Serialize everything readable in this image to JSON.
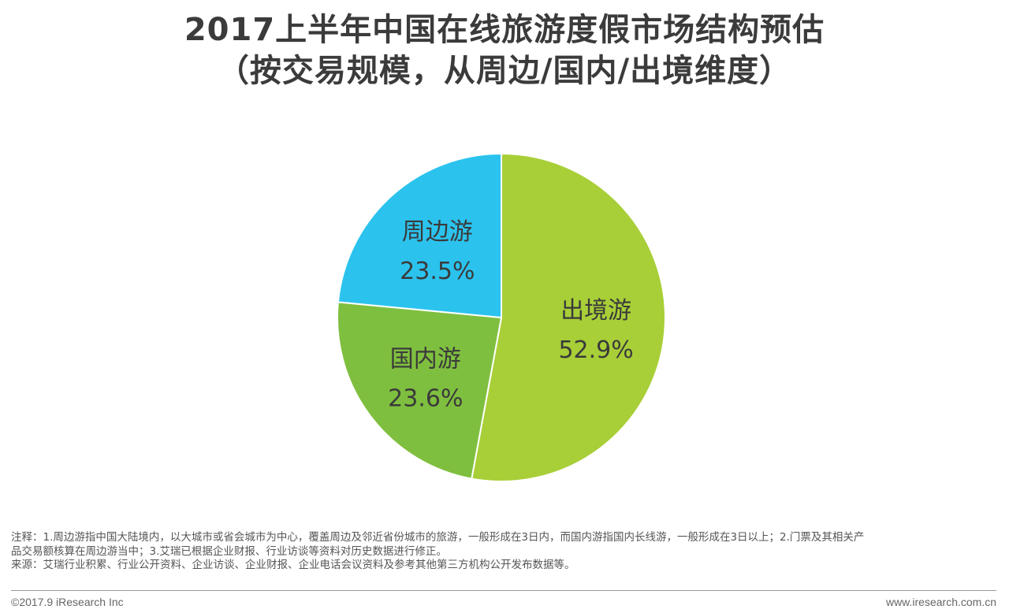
{
  "title": {
    "line1": "2017上半年中国在线旅游度假市场结构预估",
    "line2": "（按交易规模，从周边/国内/出境维度）"
  },
  "chart_data": {
    "type": "pie",
    "title": "2017上半年中国在线旅游度假市场结构预估（按交易规模，从周边/国内/出境维度）",
    "categories": [
      "出境游",
      "国内游",
      "周边游"
    ],
    "values": [
      52.9,
      23.6,
      23.5
    ],
    "value_labels": [
      "52.9%",
      "23.6%",
      "23.5%"
    ],
    "colors": [
      "#a8cf38",
      "#7fbf3f",
      "#2bc3ee"
    ],
    "start": "12 o'clock",
    "direction": "clockwise"
  },
  "notes": {
    "line1": "注释：1.周边游指中国大陆境内，以大城市或省会城市为中心，覆盖周边及邻近省份城市的旅游，一般形成在3日内，而国内游指国内长线游，一般形成在3日以上；2.门票及其相关产",
    "line2": "品交易额核算在周边游当中；3.艾瑞已根据企业财报、行业访谈等资料对历史数据进行修正。",
    "source": "来源：艾瑞行业积累、行业公开资料、企业访谈、企业财报、企业电话会议资料及参考其他第三方机构公开发布数据等。"
  },
  "footer": {
    "copyright": "©2017.9 iResearch Inc",
    "website": "www.iresearch.com.cn"
  }
}
